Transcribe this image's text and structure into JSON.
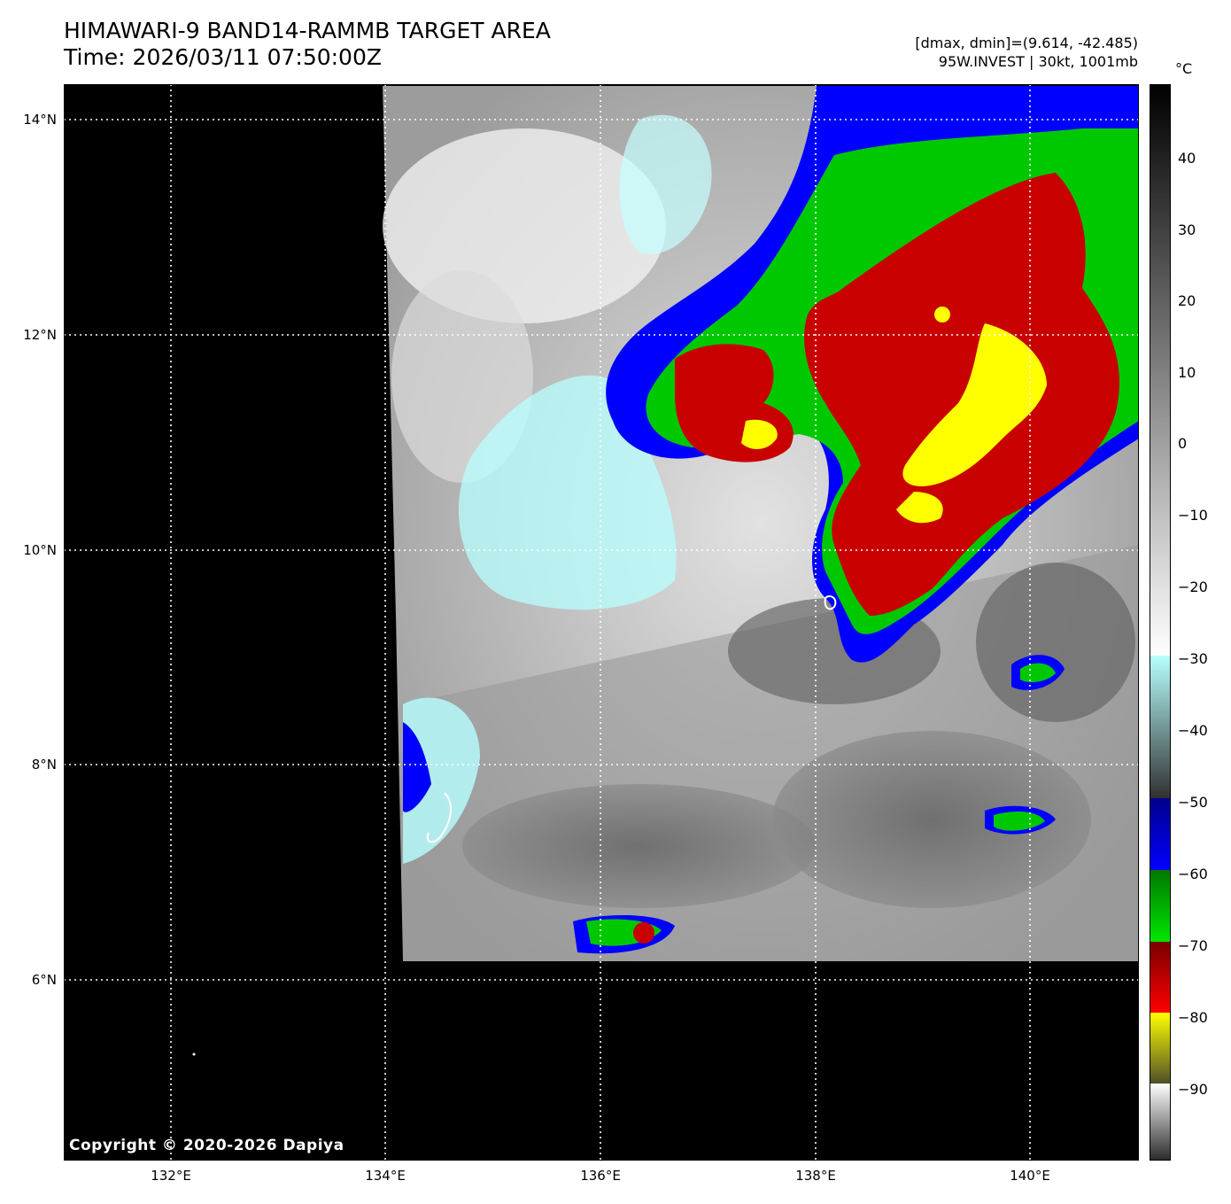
{
  "header": {
    "title_line1": "HIMAWARI-9 BAND14-RAMMB TARGET AREA",
    "title_line2": "Time: 2026/03/11 07:50:00Z",
    "info_line1": "[dmax, dmin]=(9.614, -42.485)",
    "info_line2": "95W.INVEST | 30kt, 1001mb"
  },
  "map": {
    "copyright": "Copyright © 2020-2026 Dapiya",
    "lat_labels": [
      "14°N",
      "12°N",
      "10°N",
      "8°N",
      "6°N"
    ],
    "lon_labels": [
      "132°E",
      "134°E",
      "136°E",
      "138°E",
      "140°E"
    ]
  },
  "colorbar": {
    "unit": "°C",
    "ticks": [
      "40",
      "30",
      "20",
      "10",
      "0",
      "−10",
      "−20",
      "−30",
      "−40",
      "−50",
      "−60",
      "−70",
      "−80",
      "−90"
    ],
    "colors": {
      "warm_black": "#000000",
      "cyan": "#b8ffff",
      "blue": "#0000ff",
      "green": "#00c800",
      "red": "#c80000",
      "yellow": "#ffff00"
    }
  }
}
